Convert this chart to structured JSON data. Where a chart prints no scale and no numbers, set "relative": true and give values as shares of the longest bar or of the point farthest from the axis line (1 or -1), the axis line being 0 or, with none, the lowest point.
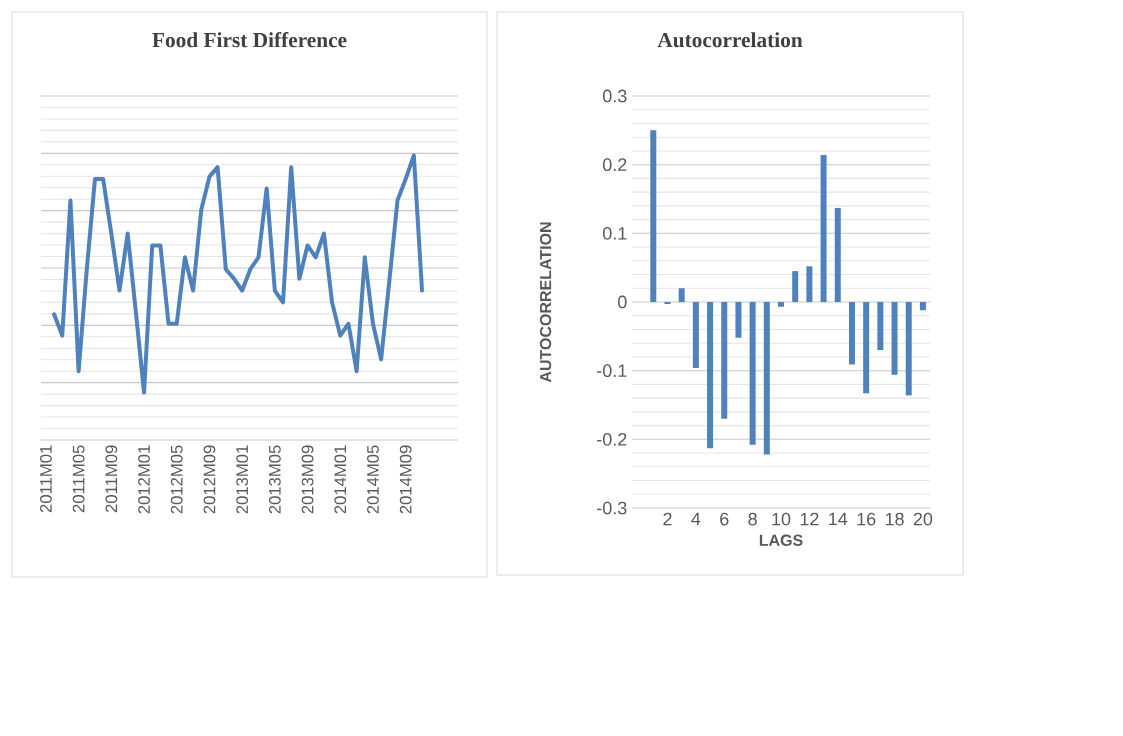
{
  "chart_data": [
    {
      "type": "line",
      "title": "Food First Difference",
      "relative": true,
      "grid": "y",
      "color": "#4f81bd",
      "categories": [
        "2011M01",
        null,
        null,
        null,
        "2011M05",
        null,
        null,
        null,
        "2011M09",
        null,
        null,
        null,
        "2012M01",
        null,
        null,
        null,
        "2012M05",
        null,
        null,
        null,
        "2012M09",
        null,
        null,
        null,
        "2013M01",
        null,
        null,
        null,
        "2013M05",
        null,
        null,
        null,
        "2013M09",
        null,
        null,
        null,
        "2014M01",
        null,
        null,
        null,
        "2014M05",
        null,
        null,
        null,
        "2014M09",
        null,
        null
      ],
      "values": [
        null,
        0.33,
        0.24,
        0.81,
        0.09,
        0.52,
        0.9,
        0.9,
        0.67,
        0.43,
        0.67,
        0.34,
        0,
        0.62,
        0.62,
        0.29,
        0.29,
        0.57,
        0.43,
        0.77,
        0.91,
        0.95,
        0.52,
        0.48,
        0.43,
        0.52,
        0.57,
        0.86,
        0.43,
        0.38,
        0.95,
        0.48,
        0.62,
        0.57,
        0.67,
        0.38,
        0.24,
        0.29,
        0.09,
        0.57,
        0.29,
        0.14,
        0.47,
        0.81,
        0.9,
        1,
        0.43
      ]
    },
    {
      "type": "bar",
      "title": "Autocorrelation",
      "xlabel": "LAGS",
      "ylabel": "AUTOCORRELATION",
      "grid": "y",
      "color": "#4f81bd",
      "categories": [
        null,
        "2",
        null,
        "4",
        null,
        "6",
        null,
        "8",
        null,
        "10",
        null,
        "12",
        null,
        "14",
        null,
        "16",
        null,
        "18",
        null,
        "20"
      ],
      "values": [
        0.25,
        -0.003,
        0.02,
        -0.096,
        -0.213,
        -0.17,
        -0.052,
        -0.208,
        -0.222,
        -0.007,
        0.045,
        0.052,
        0.214,
        0.137,
        -0.091,
        -0.133,
        -0.07,
        -0.106,
        -0.136,
        -0.012
      ],
      "ylim": [
        -0.3,
        0.3
      ],
      "yticks": [
        -0.3,
        -0.2,
        -0.1,
        0,
        0.1,
        0.2,
        0.3
      ]
    }
  ]
}
